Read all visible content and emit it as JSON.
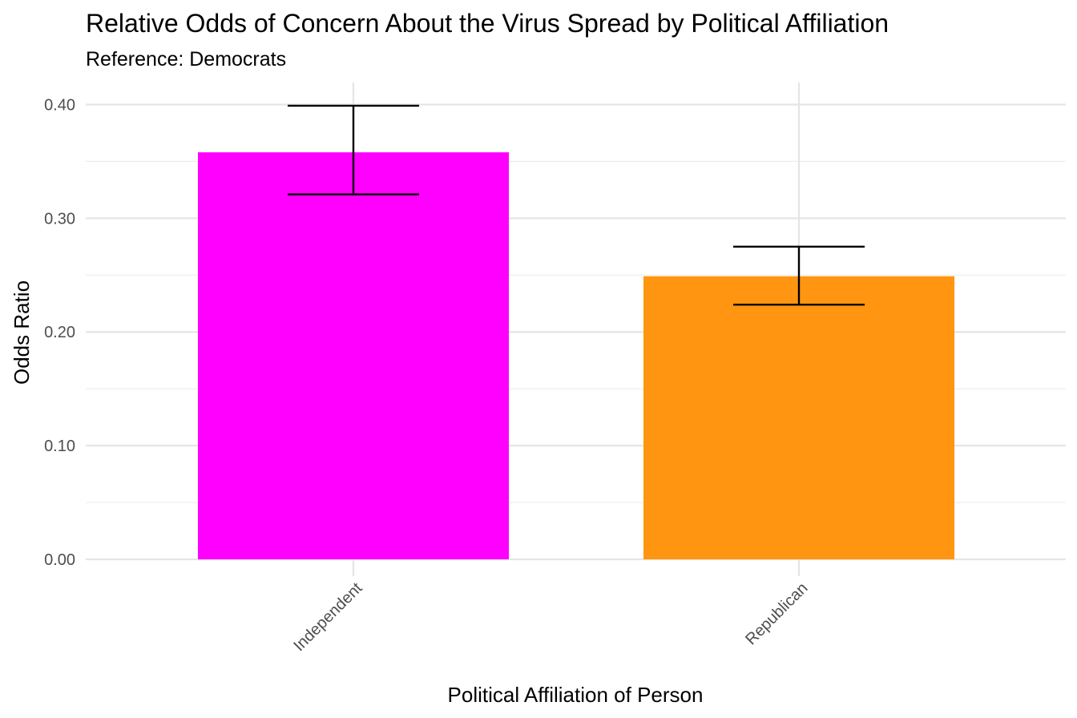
{
  "chart_data": {
    "type": "bar",
    "title": "Relative Odds of Concern About the Virus Spread by Political Affiliation",
    "subtitle": "Reference: Democrats",
    "xlabel": "Political Affiliation of Person",
    "ylabel": "Odds Ratio",
    "ylim": [
      0,
      0.42
    ],
    "y_ticks": [
      0.0,
      0.1,
      0.2,
      0.3,
      0.4
    ],
    "y_tick_labels": [
      "0.00",
      "0.10",
      "0.20",
      "0.30",
      "0.40"
    ],
    "categories": [
      "Independent",
      "Republican"
    ],
    "values": [
      0.358,
      0.249
    ],
    "error_low": [
      0.321,
      0.224
    ],
    "error_high": [
      0.399,
      0.275
    ],
    "colors": [
      "#ff00ff",
      "#ff9510"
    ],
    "grid": true,
    "legend": "none"
  }
}
